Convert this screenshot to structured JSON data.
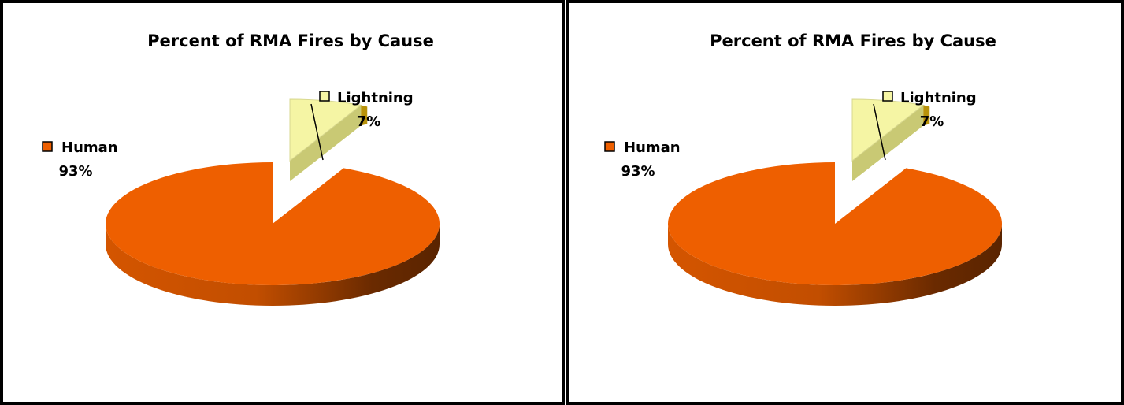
{
  "chart_data": [
    {
      "type": "pie",
      "title": "Percent of RMA Fires by Cause",
      "slices": [
        {
          "label": "Human",
          "value": 93,
          "value_label": "93%",
          "color": "#EE5F00"
        },
        {
          "label": "Lightning",
          "value": 7,
          "value_label": "7%",
          "color": "#F5F5A4"
        }
      ],
      "three_d": true,
      "exploded": "Lightning",
      "legend": "none"
    },
    {
      "type": "pie",
      "title": "Percent of RMA Fires by Cause",
      "slices": [
        {
          "label": "Human",
          "value": 93,
          "value_label": "93%",
          "color": "#EE5F00"
        },
        {
          "label": "Lightning",
          "value": 7,
          "value_label": "7%",
          "color": "#F5F5A4"
        }
      ],
      "three_d": true,
      "exploded": "Lightning",
      "legend": "none"
    }
  ]
}
